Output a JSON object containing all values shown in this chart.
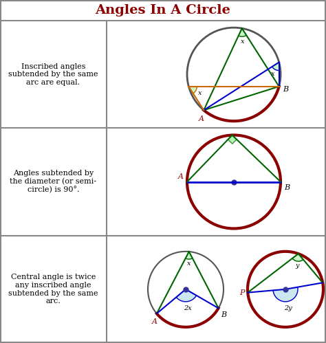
{
  "title": "Angles In A Circle",
  "title_color": "#8B0000",
  "title_fontsize": 14,
  "bg_color": "#ffffff",
  "border_color": "#888888",
  "row_texts": [
    "Inscribed angles\nsubtended by the same\narc are equal.",
    "Angles subtended by\nthe diameter (or semi-\ncircle) is 90°.",
    "Central angle is twice\nany inscribed angle\nsubtended by the same\narc."
  ],
  "dark_red": "#8B0000",
  "dark_green": "#006400",
  "blue": "#0000CD",
  "orange": "#CC6600",
  "gray": "#555555",
  "light_green_fill": "#90EE90",
  "light_blue_fill": "#ADD8E6"
}
